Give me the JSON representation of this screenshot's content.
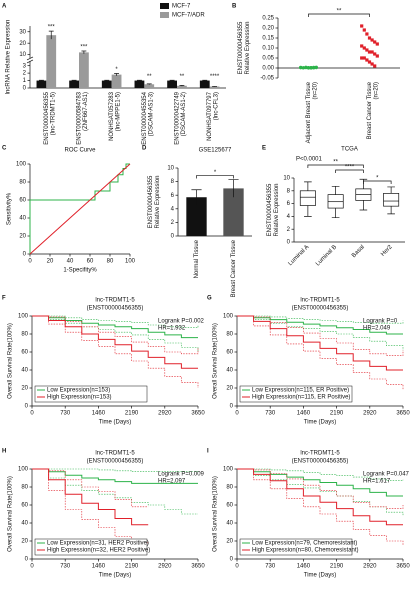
{
  "chart_data": [
    {
      "type": "bar",
      "panel_label": "A",
      "ylabel": "lncRNA Relative Expression",
      "categories": [
        "ENST00000456355",
        "ENST00000584783",
        "NONHSAT057283",
        "ENST00000455354",
        "ENST00000422749",
        "NONHSAT097797"
      ],
      "category_notes": [
        "(lnc-TRDMT1-5)",
        "(ZNF667-AS1)",
        "(lnc-MPPE1-5)",
        "(DSCAM-AS1-3)",
        "(DSCAM-AS1-2)",
        "(lnc-CFL3)"
      ],
      "series": [
        {
          "name": "MCF-7",
          "color": "#111111",
          "values": [
            1,
            1,
            1,
            1,
            1,
            1
          ],
          "errors": [
            0.05,
            0.05,
            0.05,
            0.05,
            0.05,
            0.05
          ]
        },
        {
          "name": "MCF-7/ADR",
          "color": "#9a9a9a",
          "values": [
            27,
            12,
            1.8,
            0.5,
            0.3,
            0.2
          ],
          "errors": [
            3.5,
            1.2,
            0.15,
            0.05,
            0.05,
            0.03
          ]
        }
      ],
      "annotations": [
        "***",
        "***",
        "*",
        "**",
        "**",
        "****"
      ],
      "ylim": [
        0,
        35
      ],
      "ybreak": [
        3.5,
        8
      ],
      "yticks": [
        0,
        1,
        2,
        3,
        10,
        20,
        30
      ],
      "legend": "upper right"
    },
    {
      "type": "dot",
      "panel_label": "B",
      "ylabel": [
        "ENST00000456355",
        "Relative Expression"
      ],
      "categories": [
        "Adjacent Breast Tissue",
        "Breast Cancer Tissue"
      ],
      "category_notes": [
        "(n=20)",
        "(n=20)"
      ],
      "groups": [
        {
          "color": "#2db34a",
          "marker": "circle",
          "values": [
            0.002,
            0.001,
            0.003,
            0,
            0.002,
            0.001,
            0.004,
            0.002,
            0.001,
            0.003,
            0.002,
            0,
            0.001,
            0.002,
            0.003,
            0.001,
            0.002,
            0.001,
            0.002,
            0.003
          ]
        },
        {
          "color": "#e0202a",
          "marker": "square",
          "values": [
            0.21,
            0.19,
            0.17,
            0.15,
            0.14,
            0.13,
            0.12,
            0.11,
            0.1,
            0.09,
            0.08,
            0.08,
            0.07,
            0.06,
            0.05,
            0.05,
            0.04,
            0.03,
            0.02,
            0.01
          ]
        }
      ],
      "significance": "**",
      "ylim": [
        -0.05,
        0.25
      ],
      "yticks": [
        -0.05,
        {
          "value": 0,
          "label": "0.00"
        },
        0.05,
        {
          "value": 0.1,
          "label": "0.10"
        },
        0.15,
        {
          "value": 0.2,
          "label": "0.20"
        },
        0.25
      ]
    },
    {
      "type": "line",
      "panel_label": "C",
      "title": "ROC Curve",
      "xlabel": "1-Specifity%",
      "ylabel": "Sensitivity%",
      "series": [
        {
          "color": "#2db34a",
          "step": false,
          "x": [
            0,
            0,
            65,
            65,
            80,
            80,
            88,
            88,
            93,
            93,
            96,
            96,
            100
          ],
          "values": [
            0,
            60,
            60,
            70,
            70,
            80,
            80,
            88,
            88,
            95,
            95,
            100,
            100
          ]
        },
        {
          "color": "#e0202a",
          "step": false,
          "x": [
            0,
            100
          ],
          "values": [
            0,
            100
          ]
        }
      ],
      "xlim": [
        0,
        100
      ],
      "xticks": [
        0,
        20,
        40,
        60,
        80,
        100
      ],
      "ylim": [
        0,
        100
      ],
      "yticks": [
        0,
        20,
        40,
        60,
        80,
        100
      ]
    },
    {
      "type": "bar",
      "panel_label": "D",
      "title": "GSE125677",
      "ylabel": [
        "ENST00000456355",
        "Relative Expression"
      ],
      "categories": [
        "Normal Tissue",
        "Breast Cancer Tissue"
      ],
      "values": [
        5.7,
        7.0
      ],
      "errors": [
        1.1,
        1.3
      ],
      "colors": [
        "#111111",
        "#555555"
      ],
      "significance": "*",
      "ylim": [
        0,
        10
      ],
      "yticks": [
        0,
        2,
        4,
        6,
        8,
        10
      ]
    },
    {
      "type": "box",
      "panel_label": "E",
      "title": "TCGA",
      "subtitle": "P<0.0001",
      "ylabel": [
        "ENST00000456355",
        "Relative Expression"
      ],
      "categories": [
        "Luminal A",
        "Luminal B",
        "Basal",
        "Her2"
      ],
      "boxes": [
        {
          "min": 4.0,
          "q1": 5.7,
          "median": 7.0,
          "q3": 8.0,
          "max": 9.4
        },
        {
          "min": 3.8,
          "q1": 5.3,
          "median": 6.3,
          "q3": 7.4,
          "max": 8.7
        },
        {
          "min": 5.0,
          "q1": 6.5,
          "median": 7.4,
          "q3": 8.3,
          "max": 9.8
        },
        {
          "min": 4.4,
          "q1": 5.6,
          "median": 6.4,
          "q3": 7.6,
          "max": 8.6
        }
      ],
      "comparisons": [
        {
          "groups": [
            0,
            2
          ],
          "label": "**"
        },
        {
          "groups": [
            1,
            2
          ],
          "label": "****"
        },
        {
          "groups": [
            2,
            3
          ],
          "label": "*"
        }
      ],
      "ylim": [
        0,
        10
      ],
      "yticks": [
        0,
        2,
        4,
        6,
        8,
        10
      ]
    },
    {
      "type": "line",
      "panel_label": "F",
      "title": "lnc-TRDMT1-5",
      "subtitle": "(ENST00000456355)",
      "xlabel": "Time (Days)",
      "ylabel": "Overall Survival Rate(100%)",
      "annotations": [
        "Logrank P=0.002",
        "HR=1.932"
      ],
      "legend": "lower left",
      "series": [
        {
          "name": "Low Expression(n=153)",
          "color": "#2db34a",
          "step": true,
          "x": [
            0,
            365,
            730,
            1095,
            1460,
            1825,
            2190,
            2555,
            2920,
            3285,
            3650
          ],
          "values": [
            100,
            98,
            95,
            92,
            90,
            88,
            86,
            82,
            79,
            76,
            76
          ],
          "lower": [
            100,
            96,
            92,
            88,
            85,
            82,
            79,
            74,
            70,
            65,
            60
          ],
          "upper": [
            100,
            100,
            98,
            96,
            95,
            94,
            93,
            90,
            88,
            87,
            90
          ]
        },
        {
          "name": "High Expression(n=153)",
          "color": "#e0202a",
          "step": true,
          "x": [
            0,
            365,
            730,
            1095,
            1460,
            1825,
            2190,
            2555,
            2920,
            3285,
            3650
          ],
          "values": [
            100,
            95,
            88,
            80,
            74,
            68,
            61,
            54,
            47,
            42,
            42
          ],
          "lower": [
            100,
            91,
            82,
            73,
            66,
            58,
            50,
            42,
            33,
            26,
            20
          ],
          "upper": [
            100,
            99,
            94,
            88,
            82,
            77,
            71,
            66,
            60,
            58,
            64
          ]
        }
      ],
      "xlim": [
        0,
        3650
      ],
      "xticks": [
        0,
        730,
        1460,
        2190,
        2920,
        3650
      ],
      "ylim": [
        0,
        100
      ],
      "yticks": [
        0,
        20,
        40,
        60,
        80,
        100
      ]
    },
    {
      "type": "line",
      "panel_label": "G",
      "title": "lnc-TRDMT1-5",
      "subtitle": "(ENST00000456355)",
      "xlabel": "Time (Days)",
      "ylabel": "Overall Survival Rate(100%)",
      "annotations": [
        "Logrank P=0",
        "HR=2.049"
      ],
      "legend": "lower left",
      "series": [
        {
          "name": "Low Expression(n=115, ER Positive)",
          "color": "#2db34a",
          "step": true,
          "x": [
            0,
            365,
            730,
            1095,
            1460,
            1825,
            2190,
            2555,
            2920,
            3285,
            3650
          ],
          "values": [
            100,
            98,
            96,
            93,
            91,
            89,
            87,
            85,
            82,
            80,
            80
          ],
          "lower": [
            100,
            96,
            92,
            88,
            86,
            83,
            80,
            76,
            72,
            67,
            62
          ],
          "upper": [
            100,
            100,
            99,
            97,
            96,
            95,
            94,
            93,
            92,
            92,
            95
          ]
        },
        {
          "name": "High Expression(n=115, ER Positive)",
          "color": "#e0202a",
          "step": true,
          "x": [
            0,
            365,
            730,
            1095,
            1460,
            1825,
            2190,
            2555,
            2920,
            3285,
            3650
          ],
          "values": [
            100,
            94,
            86,
            78,
            71,
            64,
            58,
            50,
            44,
            40,
            40
          ],
          "lower": [
            100,
            89,
            79,
            69,
            61,
            53,
            46,
            37,
            30,
            24,
            18
          ],
          "upper": [
            100,
            99,
            93,
            87,
            81,
            75,
            70,
            63,
            58,
            56,
            62
          ]
        }
      ],
      "xlim": [
        0,
        3650
      ],
      "xticks": [
        0,
        730,
        1460,
        2190,
        2920,
        3650
      ],
      "ylim": [
        0,
        100
      ],
      "yticks": [
        0,
        20,
        40,
        60,
        80,
        100
      ]
    },
    {
      "type": "line",
      "panel_label": "H",
      "title": "lnc-TRDMT1-5",
      "subtitle": "(ENST00000456355)",
      "xlabel": "Time (Days)",
      "ylabel": "Overall Survival Rate(100%)",
      "annotations": [
        "Logrank P=0.009",
        "HR=2.097"
      ],
      "legend": "lower left",
      "series": [
        {
          "name": "Low Expression(n=31, HER2 Positive)",
          "color": "#2db34a",
          "step": true,
          "x": [
            0,
            365,
            730,
            1095,
            1460,
            1825,
            2190,
            2555,
            2920,
            3285,
            3650
          ],
          "values": [
            100,
            97,
            93,
            90,
            88,
            86,
            84,
            84,
            84,
            84,
            84
          ],
          "lower": [
            100,
            90,
            82,
            76,
            72,
            68,
            63,
            60,
            55,
            50,
            50
          ],
          "upper": [
            100,
            100,
            100,
            100,
            99,
            98,
            97,
            97,
            97,
            97,
            97
          ]
        },
        {
          "name": "High Expression(n=32, HER2 Positive)",
          "color": "#e0202a",
          "step": true,
          "x": [
            0,
            365,
            730,
            1095,
            1460,
            1825,
            2190,
            2555,
            2920,
            3285,
            3650
          ],
          "values": [
            100,
            88,
            72,
            62,
            55,
            45,
            38,
            38,
            null,
            null,
            null
          ],
          "lower": [
            100,
            76,
            55,
            44,
            35,
            25,
            18,
            18,
            null,
            null,
            null
          ],
          "upper": [
            100,
            98,
            88,
            80,
            75,
            66,
            58,
            58,
            null,
            null,
            null
          ]
        }
      ],
      "xlim": [
        0,
        3650
      ],
      "xticks": [
        0,
        730,
        1460,
        2190,
        2920,
        3650
      ],
      "ylim": [
        0,
        100
      ],
      "yticks": [
        0,
        20,
        40,
        60,
        80,
        100
      ]
    },
    {
      "type": "line",
      "panel_label": "I",
      "title": "lnc-TRDMT1-5",
      "subtitle": "(ENST00000456355)",
      "xlabel": "Time (Days)",
      "ylabel": "Overall Survival Rate(100%)",
      "annotations": [
        "Logrank P=0.047",
        "HR=1.617"
      ],
      "legend": "lower left",
      "series": [
        {
          "name": "Low Expression(n=79, Chemoresistant)",
          "color": "#2db34a",
          "step": true,
          "x": [
            0,
            365,
            730,
            1095,
            1460,
            1825,
            2190,
            2555,
            2920,
            3285,
            3650
          ],
          "values": [
            100,
            97,
            94,
            91,
            88,
            85,
            82,
            78,
            74,
            70,
            70
          ],
          "lower": [
            100,
            93,
            88,
            83,
            79,
            75,
            70,
            64,
            58,
            52,
            48
          ],
          "upper": [
            100,
            100,
            99,
            98,
            96,
            94,
            93,
            91,
            89,
            87,
            88
          ]
        },
        {
          "name": "High Expression(n=80, Chemoresistant)",
          "color": "#e0202a",
          "step": true,
          "x": [
            0,
            365,
            730,
            1095,
            1460,
            1825,
            2190,
            2555,
            2920,
            3285,
            3650
          ],
          "values": [
            100,
            94,
            87,
            78,
            70,
            63,
            56,
            48,
            42,
            38,
            38
          ],
          "lower": [
            100,
            88,
            78,
            67,
            58,
            50,
            42,
            33,
            26,
            20,
            15
          ],
          "upper": [
            100,
            99,
            95,
            89,
            82,
            76,
            70,
            63,
            58,
            56,
            60
          ]
        }
      ],
      "xlim": [
        0,
        3650
      ],
      "xticks": [
        0,
        730,
        1460,
        2190,
        2920,
        3650
      ],
      "ylim": [
        0,
        100
      ],
      "yticks": [
        0,
        20,
        40,
        60,
        80,
        100
      ]
    }
  ]
}
